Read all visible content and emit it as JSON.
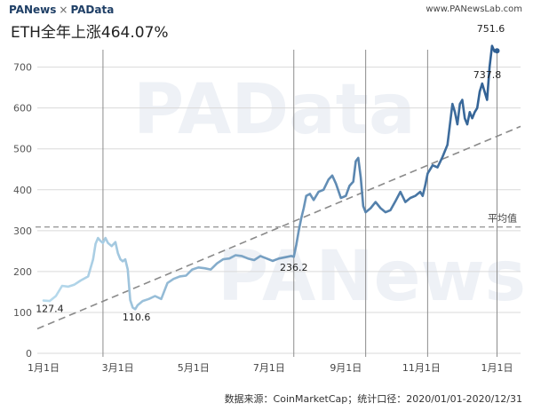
{
  "header": {
    "brand_left": "PANews",
    "brand_sep": "×",
    "brand_right": "PAData",
    "site": "www.PANewsLab.com"
  },
  "title": "ETH全年上涨464.07%",
  "footer": "数据来源：CoinMarketCap；统计口径：2020/01/01-2020/12/31",
  "watermark": [
    "PAData",
    "PANews"
  ],
  "colors": {
    "line_start": "#b9dcee",
    "line_end": "#2f5f93",
    "trend": "#8a8a8a",
    "avg": "#9a9a9a",
    "grid": "#d9d9d9",
    "vline": "#8c8c8c"
  },
  "chart_data": {
    "type": "line",
    "title": "ETH全年上涨464.07%",
    "xlabel": "",
    "ylabel": "",
    "ylim": [
      0,
      760
    ],
    "yticks": [
      0,
      100,
      200,
      300,
      400,
      500,
      600,
      700
    ],
    "xticks": [
      {
        "label": "1月1日",
        "day": 0
      },
      {
        "label": "3月1日",
        "day": 60
      },
      {
        "label": "5月1日",
        "day": 121
      },
      {
        "label": "7月1日",
        "day": 182
      },
      {
        "label": "9月1日",
        "day": 244
      },
      {
        "label": "11月1日",
        "day": 305
      },
      {
        "label": "1月1日",
        "day": 366
      }
    ],
    "grid": true,
    "vertical_markers": [
      {
        "day": 48
      },
      {
        "day": 202
      },
      {
        "day": 260
      },
      {
        "day": 310
      },
      {
        "day": 366
      }
    ],
    "average": {
      "label": "平均值",
      "value": 309
    },
    "trend_line": {
      "start": [
        -5,
        60
      ],
      "end": [
        385,
        555
      ]
    },
    "annotations": [
      {
        "label": "127.4",
        "day": 5,
        "value": 127.4
      },
      {
        "label": "110.6",
        "day": 75,
        "value": 110.6
      },
      {
        "label": "236.2",
        "day": 202,
        "value": 236.2
      },
      {
        "label": "751.6",
        "day": 361,
        "value": 751.6
      },
      {
        "label": "737.8",
        "day": 361,
        "value": 737.8
      }
    ],
    "series": [
      {
        "points": [
          [
            0,
            129
          ],
          [
            5,
            128
          ],
          [
            10,
            140
          ],
          [
            15,
            165
          ],
          [
            20,
            163
          ],
          [
            25,
            168
          ],
          [
            30,
            178
          ],
          [
            36,
            188
          ],
          [
            40,
            230
          ],
          [
            42,
            268
          ],
          [
            44,
            282
          ],
          [
            46,
            275
          ],
          [
            48,
            270
          ],
          [
            50,
            282
          ],
          [
            52,
            270
          ],
          [
            55,
            262
          ],
          [
            58,
            272
          ],
          [
            60,
            245
          ],
          [
            62,
            230
          ],
          [
            64,
            225
          ],
          [
            66,
            230
          ],
          [
            68,
            205
          ],
          [
            70,
            130
          ],
          [
            72,
            112
          ],
          [
            74,
            108
          ],
          [
            76,
            118
          ],
          [
            80,
            128
          ],
          [
            85,
            133
          ],
          [
            90,
            140
          ],
          [
            95,
            133
          ],
          [
            100,
            172
          ],
          [
            105,
            182
          ],
          [
            110,
            188
          ],
          [
            115,
            190
          ],
          [
            120,
            205
          ],
          [
            125,
            210
          ],
          [
            130,
            208
          ],
          [
            135,
            205
          ],
          [
            140,
            220
          ],
          [
            145,
            230
          ],
          [
            150,
            232
          ],
          [
            155,
            240
          ],
          [
            160,
            238
          ],
          [
            165,
            232
          ],
          [
            170,
            228
          ],
          [
            175,
            238
          ],
          [
            180,
            232
          ],
          [
            185,
            226
          ],
          [
            190,
            232
          ],
          [
            195,
            235
          ],
          [
            200,
            238
          ],
          [
            202,
            236
          ],
          [
            204,
            265
          ],
          [
            206,
            300
          ],
          [
            208,
            330
          ],
          [
            210,
            355
          ],
          [
            212,
            385
          ],
          [
            215,
            390
          ],
          [
            218,
            375
          ],
          [
            222,
            395
          ],
          [
            226,
            400
          ],
          [
            230,
            425
          ],
          [
            233,
            435
          ],
          [
            236,
            415
          ],
          [
            240,
            380
          ],
          [
            244,
            385
          ],
          [
            247,
            410
          ],
          [
            250,
            420
          ],
          [
            252,
            470
          ],
          [
            254,
            478
          ],
          [
            256,
            430
          ],
          [
            258,
            360
          ],
          [
            260,
            345
          ],
          [
            264,
            355
          ],
          [
            268,
            370
          ],
          [
            272,
            355
          ],
          [
            276,
            345
          ],
          [
            280,
            350
          ],
          [
            284,
            372
          ],
          [
            288,
            395
          ],
          [
            292,
            370
          ],
          [
            296,
            380
          ],
          [
            300,
            385
          ],
          [
            304,
            395
          ],
          [
            306,
            385
          ],
          [
            308,
            410
          ],
          [
            310,
            440
          ],
          [
            314,
            460
          ],
          [
            318,
            455
          ],
          [
            322,
            480
          ],
          [
            326,
            510
          ],
          [
            328,
            560
          ],
          [
            330,
            610
          ],
          [
            332,
            590
          ],
          [
            334,
            560
          ],
          [
            336,
            610
          ],
          [
            338,
            620
          ],
          [
            340,
            575
          ],
          [
            342,
            560
          ],
          [
            344,
            590
          ],
          [
            346,
            575
          ],
          [
            348,
            590
          ],
          [
            350,
            600
          ],
          [
            352,
            640
          ],
          [
            354,
            660
          ],
          [
            356,
            640
          ],
          [
            358,
            620
          ],
          [
            360,
            700
          ],
          [
            362,
            752
          ],
          [
            364,
            738
          ],
          [
            366,
            740
          ]
        ]
      }
    ]
  }
}
